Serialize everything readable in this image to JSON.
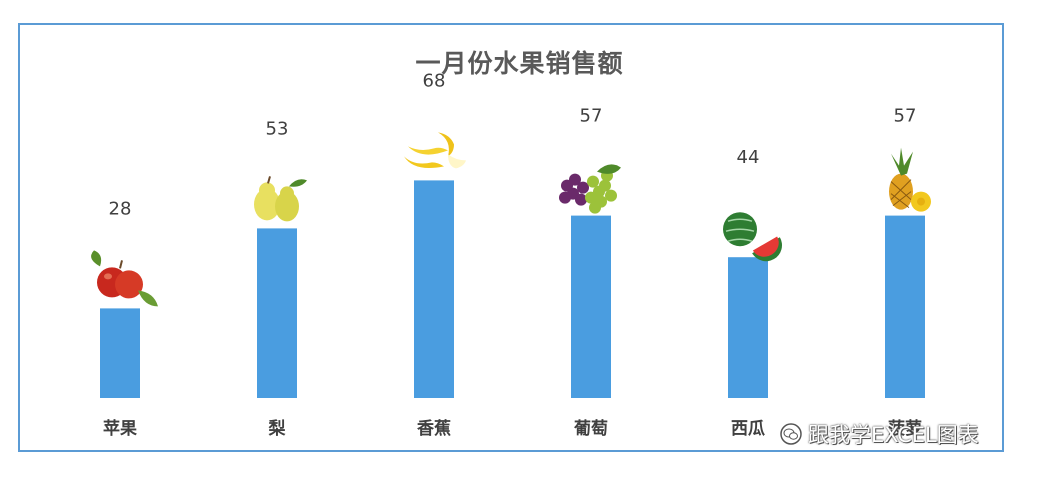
{
  "chart_data": {
    "type": "bar",
    "title": "一月份水果销售额",
    "categories": [
      "苹果",
      "梨",
      "香蕉",
      "葡萄",
      "西瓜",
      "菠萝"
    ],
    "values": [
      28,
      53,
      68,
      57,
      44,
      57
    ],
    "icons": [
      "apple-icon",
      "pear-icon",
      "banana-icon",
      "grape-icon",
      "watermelon-icon",
      "pineapple-icon"
    ],
    "xlabel": "",
    "ylabel": "",
    "grid": false,
    "bar_color": "#4a9de0"
  },
  "watermark": {
    "icon": "wechat-icon",
    "text": "跟我学EXCEL图表"
  }
}
